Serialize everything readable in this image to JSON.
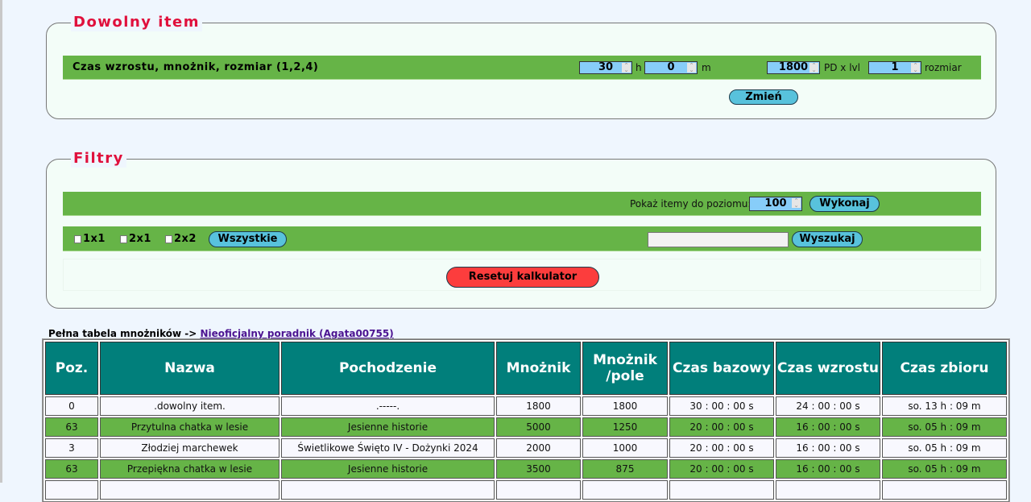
{
  "dowolny": {
    "legend": "Dowolny item",
    "label": "Czas wzrostu, mnożnik, rozmiar (1,2,4)",
    "hours": "30",
    "hours_unit": "h",
    "minutes": "0",
    "minutes_unit": "m",
    "pd": "1800",
    "pd_unit": "PD x lvl",
    "size": "1",
    "size_unit": "rozmiar",
    "submit": "Zmień"
  },
  "filtry": {
    "legend": "Filtry",
    "level_label": "Pokaż itemy do poziomu:",
    "level_value": "100",
    "run": "Wykonaj",
    "checkboxes": [
      {
        "label": "1x1",
        "checked": false
      },
      {
        "label": "2x1",
        "checked": false
      },
      {
        "label": "2x2",
        "checked": false
      }
    ],
    "all": "Wszystkie",
    "search_value": "",
    "search": "Wyszukaj",
    "reset": "Resetuj kalkulator"
  },
  "table_caption": {
    "text": "Pełna tabela mnożników ->",
    "link": "Nieoficjalny poradnik (Agata00755)"
  },
  "table": {
    "headers": [
      "Poz.",
      "Nazwa",
      "Pochodzenie",
      "Mnożnik",
      "Mnożnik /pole",
      "Czas bazowy",
      "Czas wzrostu",
      "Czas zbioru"
    ],
    "rows": [
      [
        "0",
        ".dowolny item.",
        ".-----.",
        "1800",
        "1800",
        "30 : 00 : 00 s",
        "24 : 00 : 00 s",
        "so. 13 h : 09 m"
      ],
      [
        "63",
        "Przytulna chatka w lesie",
        "Jesienne historie",
        "5000",
        "1250",
        "20 : 00 : 00 s",
        "16 : 00 : 00 s",
        "so. 05 h : 09 m"
      ],
      [
        "3",
        "Złodziej marchewek",
        "Świetlikowe Święto IV - Dożynki 2024",
        "2000",
        "1000",
        "20 : 00 : 00 s",
        "16 : 00 : 00 s",
        "so. 05 h : 09 m"
      ],
      [
        "63",
        "Przepiękna chatka w lesie",
        "Jesienne historie",
        "3500",
        "875",
        "20 : 00 : 00 s",
        "16 : 00 : 00 s",
        "so. 05 h : 09 m"
      ]
    ]
  },
  "colors": {
    "legend": "#e0103c",
    "bar": "#66b447",
    "header": "#017f7b",
    "button": "#58c2dc",
    "reset": "#fc3d3d"
  }
}
